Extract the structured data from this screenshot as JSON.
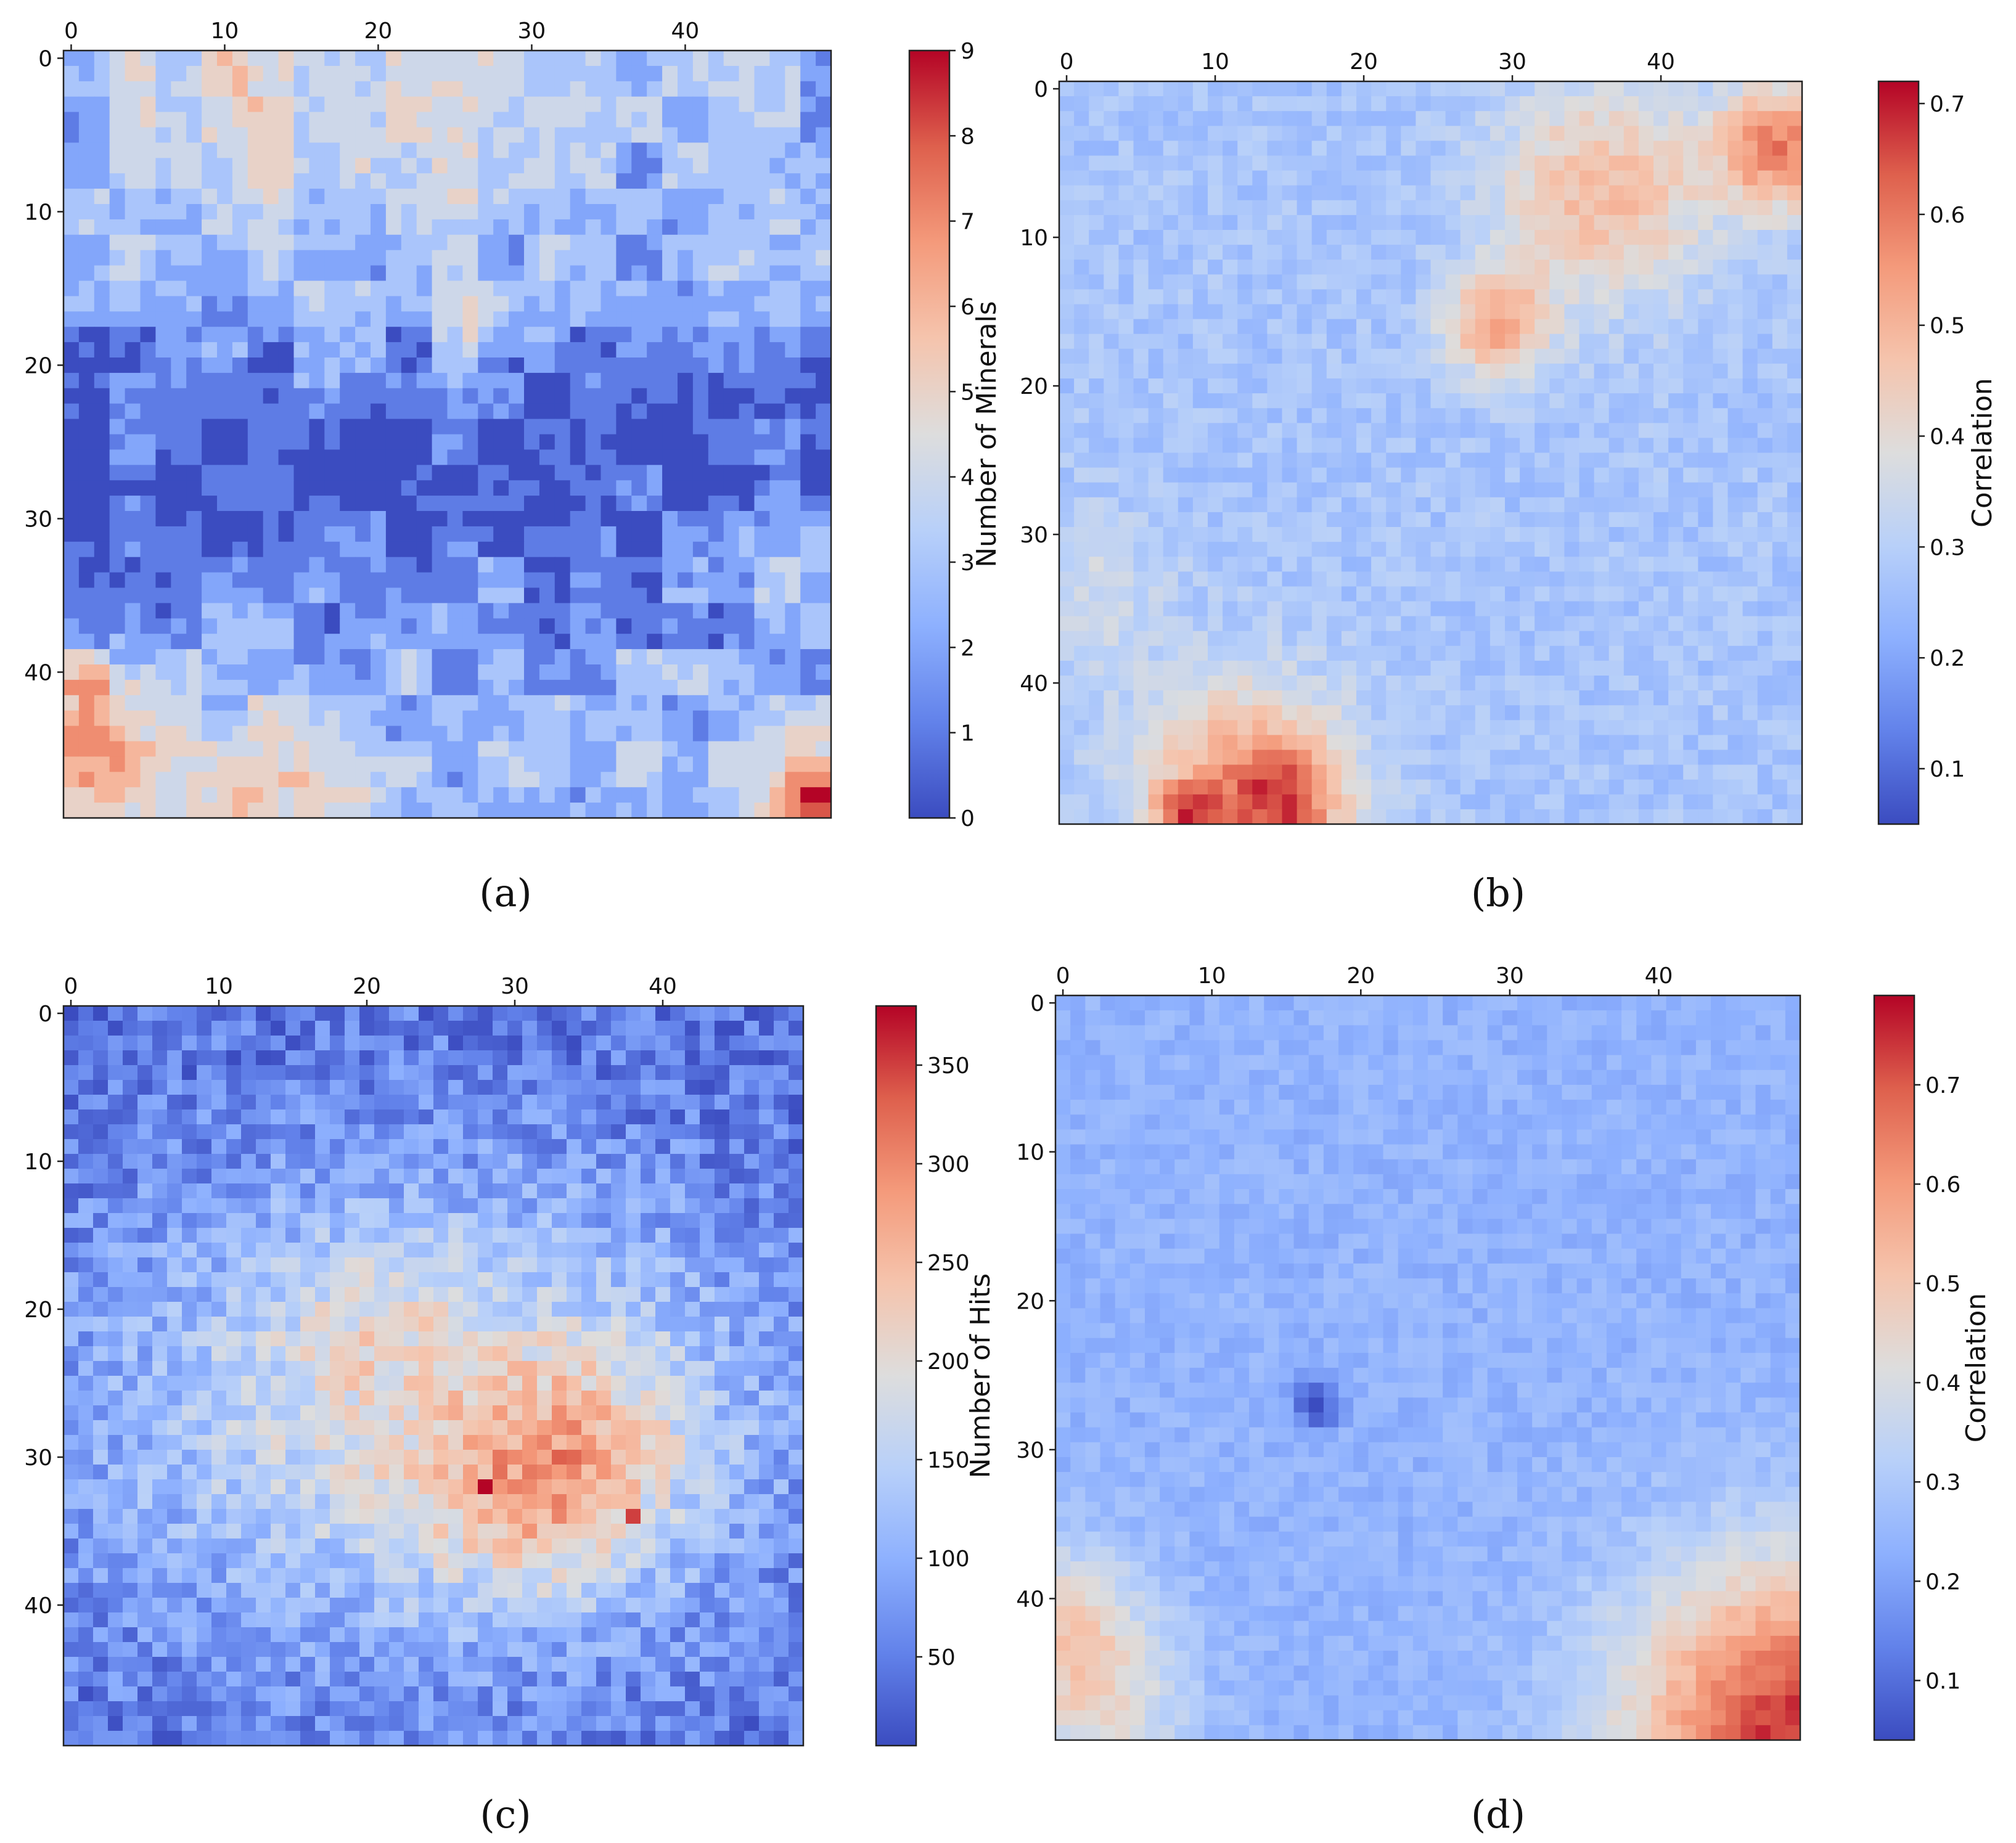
{
  "colors": {
    "colormap": "coolwarm",
    "low": "#3b4cc0",
    "mid": "#dddddd",
    "high": "#b40426"
  },
  "chart_data": [
    {
      "type": "heatmap",
      "caption": "(a)",
      "grid_size": [
        50,
        50
      ],
      "x_ticks": [
        0,
        10,
        20,
        30,
        40
      ],
      "y_ticks": [
        0,
        10,
        20,
        30,
        40
      ],
      "x_tick_position": "top",
      "colorbar": {
        "label": "Number of Minerals",
        "min": 0,
        "max": 9,
        "ticks": [
          0,
          1,
          2,
          3,
          4,
          5,
          6,
          7,
          8,
          9
        ]
      },
      "description_values": "discrete mineral counts 0-9; low (0-1) band across center rows 15-40, moderate (2-4) at top and edges, hot spots (5-9) in bottom-left and bottom-right corners"
    },
    {
      "type": "heatmap",
      "caption": "(b)",
      "grid_size": [
        50,
        50
      ],
      "x_ticks": [
        0,
        10,
        20,
        30,
        40
      ],
      "y_ticks": [
        0,
        10,
        20,
        30,
        40
      ],
      "x_tick_position": "top",
      "colorbar": {
        "label": "Correlation",
        "min": 0.05,
        "max": 0.72,
        "ticks": [
          0.1,
          0.2,
          0.3,
          0.4,
          0.5,
          0.6,
          0.7
        ]
      },
      "description_values": "correlation mostly 0.25-0.35; higher (0.5-0.65) near top-right and around (30,16); bottom-left cluster near (8-16, 44-49) reaching 0.72"
    },
    {
      "type": "heatmap",
      "caption": "(c)",
      "grid_size": [
        50,
        50
      ],
      "x_ticks": [
        0,
        10,
        20,
        30,
        40
      ],
      "y_ticks": [
        0,
        10,
        20,
        30,
        40
      ],
      "x_tick_position": "top",
      "colorbar": {
        "label": "Number of Hits",
        "min": 5,
        "max": 380,
        "ticks": [
          50,
          100,
          150,
          200,
          250,
          300,
          350
        ]
      },
      "description_values": "low hit counts (20-80) along top rows and right/lower edges; central region 150-250 with peaks ~330-380 near (28-38, 30-36)"
    },
    {
      "type": "heatmap",
      "caption": "(d)",
      "grid_size": [
        50,
        50
      ],
      "x_ticks": [
        0,
        10,
        20,
        30,
        40
      ],
      "y_ticks": [
        0,
        10,
        20,
        30,
        40
      ],
      "x_tick_position": "top",
      "colorbar": {
        "label": "Correlation",
        "min": 0.04,
        "max": 0.79,
        "ticks": [
          0.1,
          0.2,
          0.3,
          0.4,
          0.5,
          0.6,
          0.7
        ]
      },
      "description_values": "correlation mostly 0.2-0.3; strong values 0.5-0.79 in bottom-right corner, moderate 0.4-0.5 at bottom-left; dark spot near (17, 27)"
    }
  ]
}
